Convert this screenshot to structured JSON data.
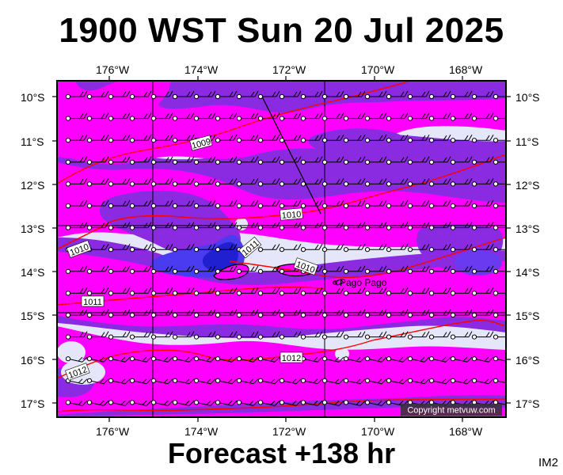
{
  "title": "1900 WST Sun 20 Jul 2025",
  "footer": "Forecast +138 hr",
  "product_tag": "IM2",
  "copyright": "Copyright metvuw.com",
  "place_label": "Pago Pago",
  "lon_labels": [
    "176°W",
    "174°W",
    "172°W",
    "170°W",
    "168°W"
  ],
  "lat_labels": [
    "10°S",
    "11°S",
    "12°S",
    "13°S",
    "14°S",
    "15°S",
    "16°S",
    "17°S"
  ],
  "isobar_labels": [
    "1009",
    "1010",
    "1010",
    "1010",
    "1011",
    "1011",
    "1012",
    "1012",
    "1013"
  ],
  "colors": {
    "background": "#e6e6fa",
    "rain_light": "#8a2be2",
    "rain_heavy": "#ff00ff",
    "rain_core": "#2020d0",
    "isobar": "#ff0000",
    "wind_barb": "#000000"
  }
}
